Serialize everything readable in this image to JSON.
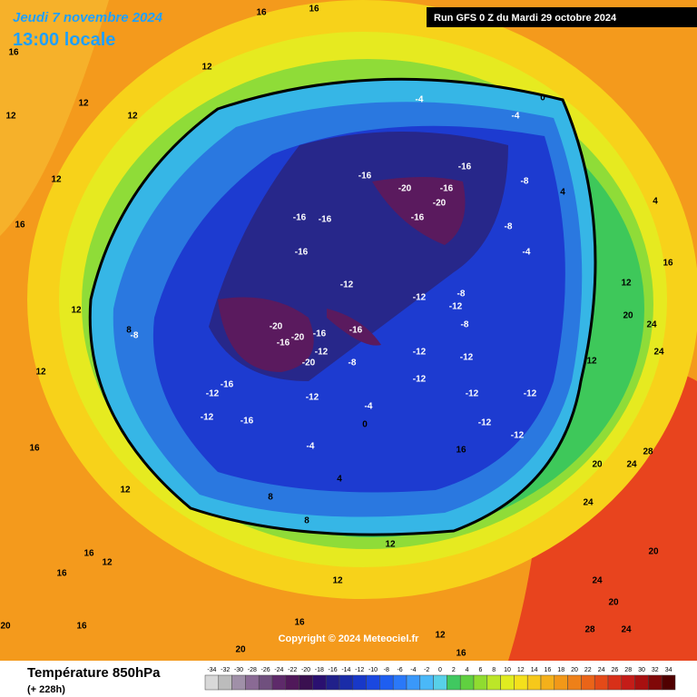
{
  "header": {
    "date": "Jeudi 7 novembre 2024",
    "time": "13:00 locale",
    "run": "Run GFS 0 Z du Mardi 29 octobre 2024"
  },
  "footer": {
    "title": "Température 850hPa",
    "lead": "(+ 228h)",
    "copyright": "Copyright © 2024 Meteociel.fr"
  },
  "legend": {
    "ticks": [
      -34,
      -32,
      -30,
      -28,
      -26,
      -24,
      -22,
      -20,
      -18,
      -16,
      -14,
      -12,
      -10,
      -8,
      -6,
      -4,
      -2,
      0,
      2,
      4,
      6,
      8,
      10,
      12,
      14,
      16,
      18,
      20,
      22,
      24,
      26,
      28,
      30,
      32,
      34
    ]
  },
  "map_labels": [
    16,
    12,
    16,
    16,
    12,
    12,
    12,
    12,
    16,
    12,
    12,
    16,
    12,
    16,
    16,
    12,
    16,
    20,
    16,
    20,
    12,
    12,
    12,
    16,
    -4,
    0,
    -4,
    -16,
    -16,
    -20,
    -16,
    -20,
    -16,
    -16,
    -16,
    -16,
    -12,
    -12,
    -8,
    -12,
    -20,
    -20,
    -16,
    -16,
    -12,
    -20,
    -8,
    -16,
    -12,
    -12,
    -8,
    -16,
    -12,
    -12,
    -16,
    -12,
    -12,
    -12,
    -12,
    -12,
    -12,
    -8,
    -8,
    -4,
    4,
    4,
    12,
    16,
    20,
    24,
    24,
    28,
    24,
    20,
    24,
    20,
    24,
    20,
    24,
    28,
    8,
    -8,
    -4,
    0,
    4,
    8,
    8,
    -4,
    12,
    16
  ]
}
